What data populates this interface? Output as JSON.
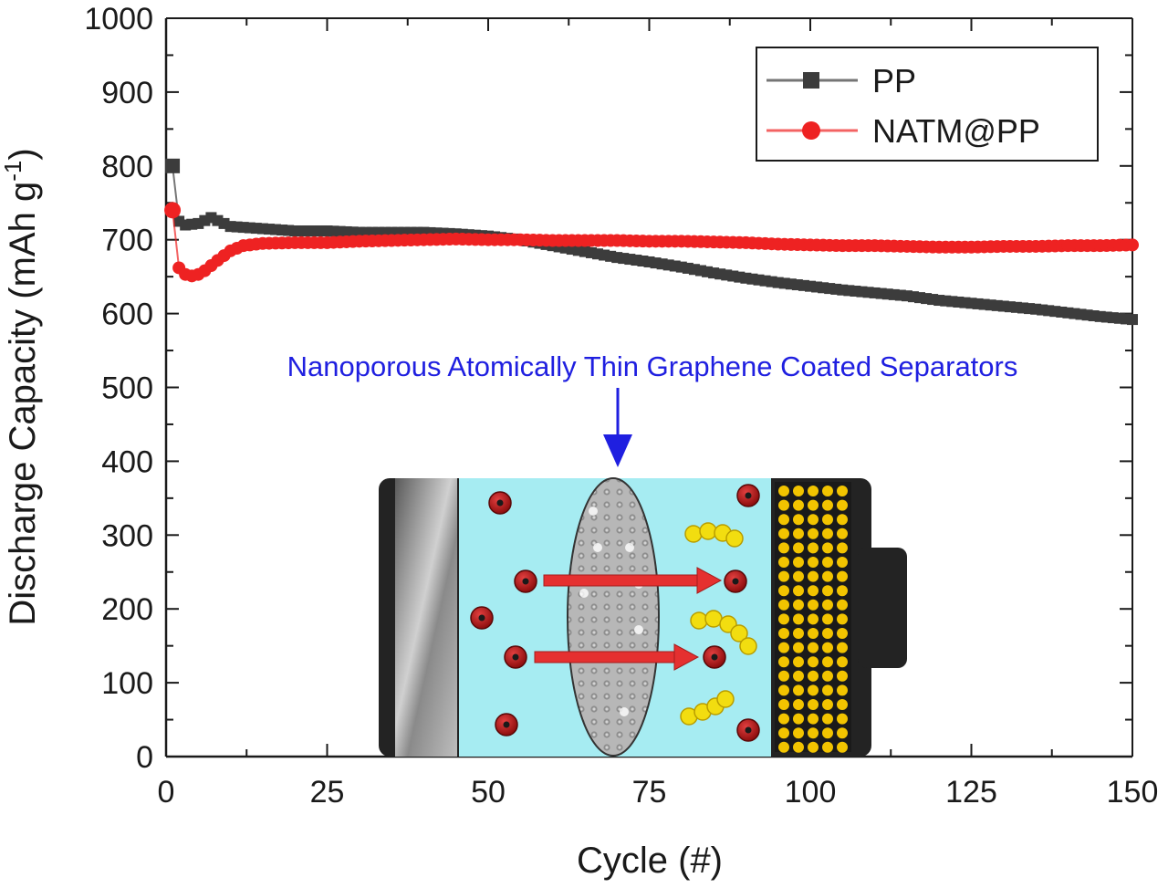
{
  "chart_data": {
    "type": "line",
    "title": "",
    "xlabel": "Cycle (#)",
    "ylabel_main": "Discharge Capacity (mAh g",
    "ylabel_sup": "-1",
    "ylabel_close": ")",
    "xlim": [
      0,
      150
    ],
    "ylim": [
      0,
      1000
    ],
    "xticks": [
      0,
      25,
      50,
      75,
      100,
      125,
      150
    ],
    "yticks": [
      0,
      100,
      200,
      300,
      400,
      500,
      600,
      700,
      800,
      900,
      1000
    ],
    "grid": false,
    "legend_position": "top-right",
    "series": [
      {
        "name": "PP",
        "color": "#3c3c3c",
        "marker": "square",
        "x": [
          1,
          2,
          3,
          5,
          7,
          10,
          15,
          20,
          25,
          30,
          35,
          40,
          45,
          50,
          55,
          60,
          65,
          70,
          75,
          80,
          85,
          90,
          95,
          100,
          105,
          110,
          115,
          120,
          125,
          130,
          135,
          140,
          145,
          150
        ],
        "y": [
          800,
          725,
          720,
          722,
          730,
          718,
          715,
          712,
          712,
          710,
          710,
          710,
          708,
          705,
          700,
          692,
          684,
          676,
          670,
          663,
          655,
          648,
          642,
          637,
          632,
          628,
          624,
          618,
          614,
          610,
          606,
          601,
          596,
          592
        ]
      },
      {
        "name": "NATM@PP",
        "color": "#ee2222",
        "marker": "circle",
        "x": [
          1,
          2,
          3,
          4,
          5,
          6,
          8,
          10,
          12,
          15,
          20,
          25,
          30,
          35,
          40,
          45,
          50,
          55,
          60,
          65,
          70,
          75,
          80,
          85,
          90,
          95,
          100,
          105,
          110,
          115,
          120,
          125,
          130,
          135,
          140,
          145,
          150
        ],
        "y": [
          740,
          662,
          653,
          651,
          653,
          658,
          672,
          685,
          692,
          695,
          696,
          696,
          698,
          699,
          700,
          701,
          700,
          700,
          699,
          699,
          699,
          698,
          698,
          697,
          696,
          694,
          693,
          692,
          692,
          691,
          690,
          690,
          691,
          691,
          692,
          692,
          693
        ]
      }
    ],
    "annotation": "Nanoporous Atomically Thin Graphene Coated Separators"
  },
  "colors": {
    "background": "#ffffff",
    "axis": "#1a1a1a",
    "annotation": "#1f1fe0",
    "cell_electrolyte": "#a6ecf2",
    "cell_casing": "#232323",
    "ion": "#b31414",
    "polysulfide": "#f2dd10",
    "arrow": "#e53030"
  },
  "icons": {
    "inset": "lithium-sulfur-cell-diagram",
    "pointer": "down-arrow-icon"
  }
}
